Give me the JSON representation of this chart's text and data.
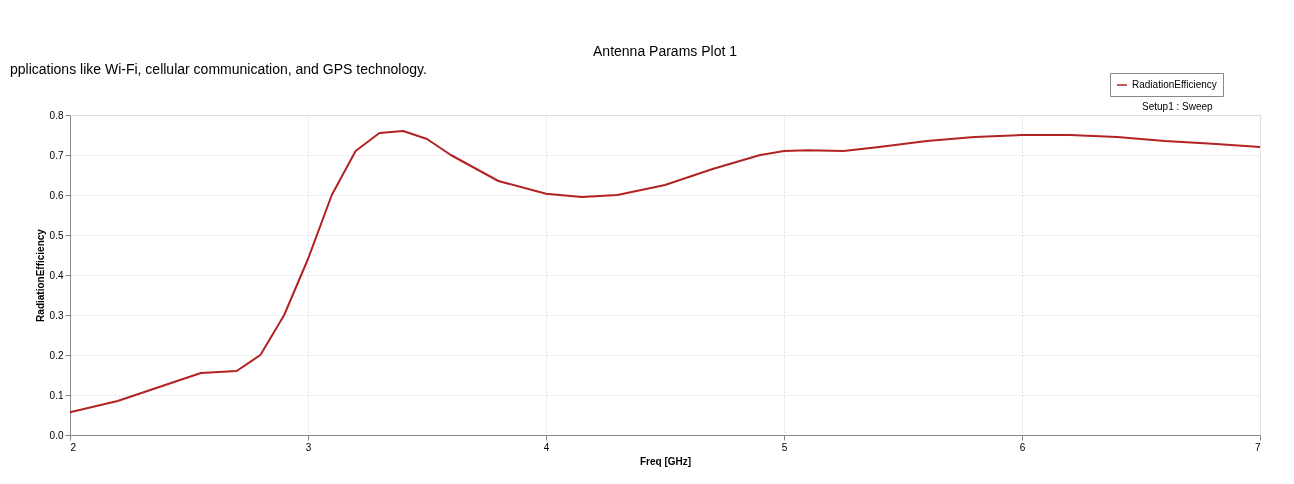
{
  "chart_data": {
    "type": "line",
    "title": "Antenna Params Plot 1",
    "xlabel": "Freq [GHz]",
    "ylabel": "RadiationEfficiency",
    "xlim": [
      2,
      7
    ],
    "xticks": [
      2,
      3,
      4,
      5,
      6,
      7
    ],
    "ylim": [
      0,
      0.8
    ],
    "yticks": [
      {
        "value": 0,
        "label": "0.0"
      },
      0.1,
      0.2,
      0.3,
      0.4,
      0.5,
      0.6,
      0.7,
      0.8
    ],
    "grid": true,
    "legend": "top right",
    "line_style": "solid",
    "marker": "none",
    "annotations": [
      "pplications like Wi-Fi, cellular communication, and GPS technology.",
      "Setup1 : Sweep"
    ],
    "series": [
      {
        "name": "RadiationEfficiency",
        "color": "#b22222",
        "x": [
          2.0,
          2.2,
          2.4,
          2.55,
          2.7,
          2.8,
          2.9,
          3.0,
          3.1,
          3.2,
          3.3,
          3.4,
          3.5,
          3.6,
          3.8,
          4.0,
          4.15,
          4.3,
          4.5,
          4.7,
          4.9,
          5.0,
          5.1,
          5.25,
          5.4,
          5.6,
          5.8,
          6.0,
          6.2,
          6.4,
          6.6,
          6.8,
          7.0
        ],
        "values": [
          0.057,
          0.085,
          0.125,
          0.155,
          0.16,
          0.2,
          0.3,
          0.44,
          0.6,
          0.71,
          0.755,
          0.76,
          0.74,
          0.7,
          0.635,
          0.603,
          0.595,
          0.6,
          0.625,
          0.665,
          0.7,
          0.71,
          0.712,
          0.71,
          0.72,
          0.735,
          0.745,
          0.75,
          0.75,
          0.745,
          0.735,
          0.728,
          0.72
        ]
      }
    ]
  }
}
